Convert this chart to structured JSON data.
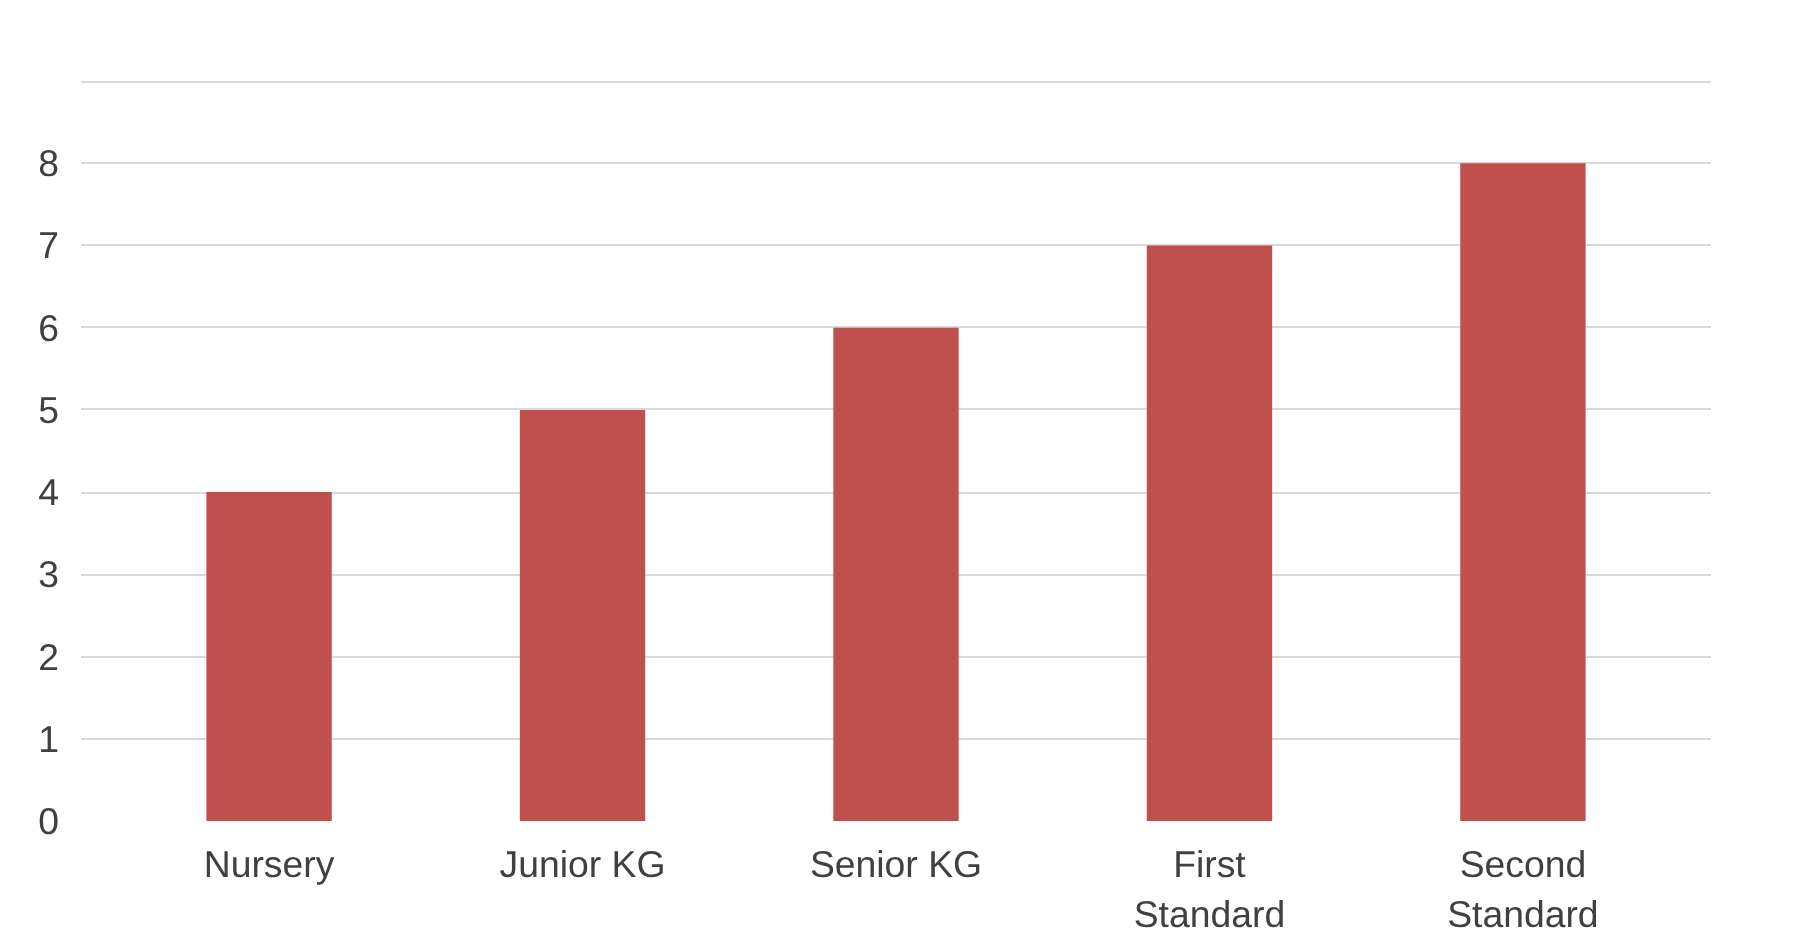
{
  "chart_data": {
    "type": "bar",
    "categories": [
      "Nursery",
      "Junior KG",
      "Senior KG",
      "First Standard",
      "Second Standard"
    ],
    "values": [
      4,
      5,
      6,
      7,
      8
    ],
    "color": "#c0504d",
    "ylim": [
      0,
      9
    ],
    "yticks": [
      0,
      1,
      2,
      3,
      4,
      5,
      6,
      7,
      8,
      {
        "value": 9,
        "label": null
      }
    ],
    "grid": "y"
  }
}
